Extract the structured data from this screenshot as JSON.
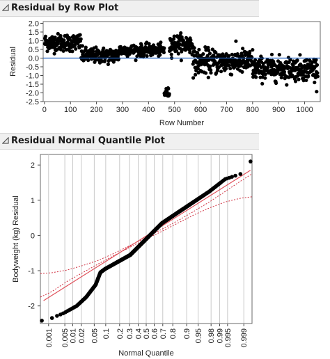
{
  "panels": {
    "top_title": "Residual by Row Plot",
    "bottom_title": "Residual Normal Quantile Plot"
  },
  "colors": {
    "points": "#000000",
    "zero_line": "#1f5fbf",
    "fit_line": "#e0505a",
    "confidence_band": "#d03040",
    "grid": "#c8c8c8",
    "frame": "#6a6a6a"
  },
  "icons": {
    "disclosure": "disclosure-triangle-icon"
  },
  "chart_data": [
    {
      "type": "scatter",
      "title": "Residual by Row Plot",
      "xlabel": "Row Number",
      "ylabel": "Residual",
      "xlim": [
        -5,
        1060
      ],
      "ylim": [
        -2.5,
        2.1
      ],
      "xticks": [
        0,
        100,
        200,
        300,
        400,
        500,
        600,
        700,
        800,
        900,
        1000
      ],
      "yticks": [
        -2.5,
        -2.0,
        -1.5,
        -1.0,
        -0.5,
        0.0,
        0.5,
        1.0,
        1.5,
        2.0
      ],
      "ytick_labels": [
        "-2.5",
        "-2.0",
        "-1.5",
        "-1.0",
        "-0.5",
        "0.0",
        "0.5",
        "1.0",
        "1.5",
        "2.0"
      ],
      "reference_line": 0,
      "grid": false,
      "point_count": 1050,
      "segments": [
        {
          "rows": [
            1,
            140
          ],
          "center": 0.9,
          "spread": 0.45
        },
        {
          "rows": [
            141,
            285
          ],
          "center": 0.15,
          "spread": 0.4
        },
        {
          "rows": [
            286,
            460
          ],
          "center": 0.45,
          "spread": 0.3
        },
        {
          "rows": [
            461,
            480
          ],
          "center": -2.0,
          "spread": 0.25
        },
        {
          "rows": [
            481,
            570
          ],
          "center": 0.8,
          "spread": 0.5
        },
        {
          "rows": [
            571,
            800
          ],
          "center": -0.2,
          "spread": 0.65
        },
        {
          "rows": [
            801,
            1050
          ],
          "center": -0.6,
          "spread": 0.6
        }
      ]
    },
    {
      "type": "scatter",
      "title": "Residual Normal Quantile Plot",
      "xlabel": "Normal Quantile",
      "ylabel": "Bodyweight (kg) Residual",
      "ylim": [
        -2.5,
        2.3
      ],
      "yticks": [
        -2,
        -1,
        0,
        1,
        2
      ],
      "ytick_labels": [
        "-2",
        "-1",
        "0",
        "1",
        "2"
      ],
      "xticks": [
        0.001,
        0.005,
        0.01,
        0.02,
        0.05,
        0.1,
        0.2,
        0.3,
        0.4,
        0.5,
        0.6,
        0.7,
        0.8,
        0.9,
        0.95,
        0.98,
        0.99,
        0.995,
        0.999
      ],
      "xtick_labels": [
        "0.001",
        "0.005",
        "0.01",
        "0.02",
        "0.05",
        "0.1",
        "0.2",
        "0.3",
        "0.4",
        "0.5",
        "0.6",
        "0.7",
        "0.8",
        "0.9",
        "0.95",
        "0.98",
        "0.99",
        "0.995",
        "0.999"
      ],
      "xlim_quantile": [
        -3.35,
        3.35
      ],
      "grid": true,
      "point_count": 1050,
      "sorted_residual_profile": {
        "quantile": [
          -3.3,
          -3.0,
          -2.6,
          -2.2,
          -1.9,
          -1.6,
          -1.45,
          -1.3,
          -1.0,
          -0.5,
          0.0,
          0.5,
          1.0,
          1.5,
          2.0,
          2.5,
          3.0,
          3.3
        ],
        "residual": [
          -2.42,
          -2.35,
          -2.2,
          -2.0,
          -1.75,
          -1.4,
          -1.05,
          -0.95,
          -0.8,
          -0.55,
          -0.1,
          0.35,
          0.65,
          0.95,
          1.25,
          1.6,
          1.75,
          2.1
        ]
      },
      "fit_line": {
        "quantile": [
          -3.25,
          3.3
        ],
        "residual": [
          -1.85,
          1.85
        ]
      },
      "confidence_band": {
        "upper": {
          "quantile": [
            -3.35,
            -3.0,
            -2.5,
            -2.0,
            -1.5,
            -1.0,
            -0.5,
            0.0,
            0.5,
            1.0,
            1.5,
            2.0,
            2.5,
            3.0,
            3.35
          ],
          "residual": [
            -1.08,
            -1.06,
            -0.98,
            -0.85,
            -0.7,
            -0.5,
            -0.28,
            -0.06,
            0.18,
            0.42,
            0.68,
            0.95,
            1.25,
            1.55,
            1.75
          ]
        },
        "lower": {
          "quantile": [
            -3.35,
            -3.0,
            -2.5,
            -2.0,
            -1.5,
            -1.0,
            -0.5,
            0.0,
            0.5,
            1.0,
            1.5,
            2.0,
            2.5,
            3.0,
            3.35
          ],
          "residual": [
            -1.75,
            -1.6,
            -1.3,
            -1.05,
            -0.8,
            -0.56,
            -0.33,
            -0.1,
            0.12,
            0.35,
            0.58,
            0.78,
            0.95,
            1.06,
            1.1
          ]
        }
      }
    }
  ]
}
